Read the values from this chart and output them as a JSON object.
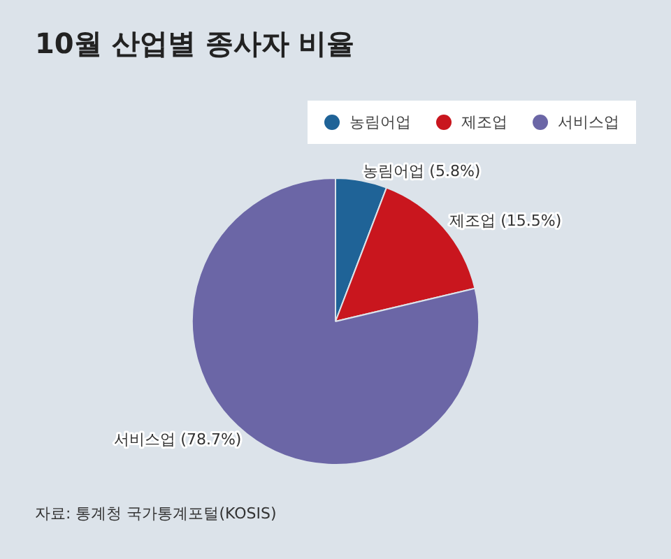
{
  "chart_data": {
    "type": "pie",
    "title": "10월 산업별 종사자 비율",
    "categories": [
      "농림어업",
      "제조업",
      "서비스업"
    ],
    "values": [
      5.8,
      15.5,
      78.7
    ],
    "colors": [
      "#1f6397",
      "#c9161e",
      "#6b66a6"
    ],
    "value_labels": [
      "(5.8%)",
      "(15.5%)",
      "(78.7%)"
    ],
    "legend": "top right",
    "annotations": [
      "자료: 통계청 국가통계포털(KOSIS)"
    ]
  }
}
